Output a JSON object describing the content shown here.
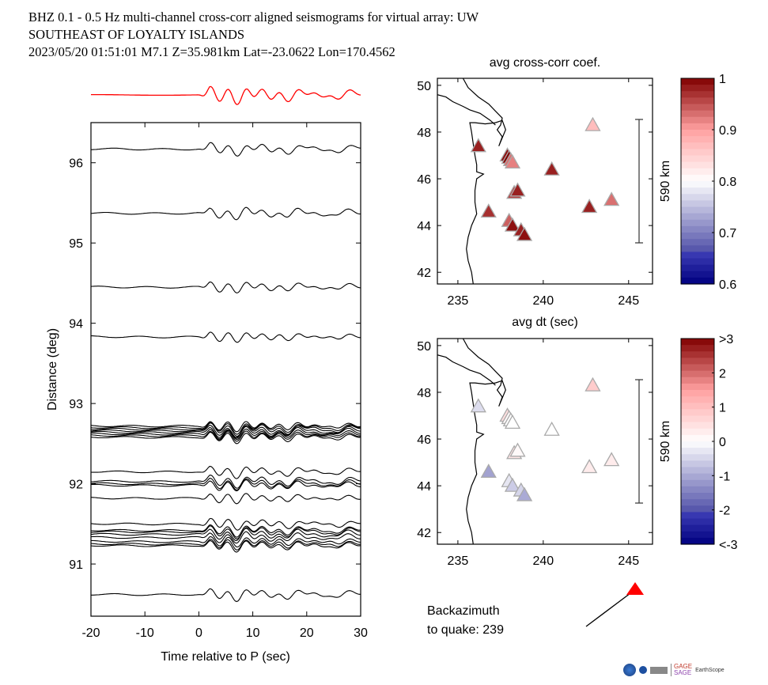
{
  "titles": {
    "line1": "BHZ  0.1 - 0.5 Hz  multi-channel cross-corr aligned seismograms for virtual array: UW",
    "line2": "SOUTHEAST OF LOYALTY ISLANDS",
    "line3": "2023/05/20  01:51:01  M7.1  Z=35.981km Lat=-23.0622 Lon=170.4562"
  },
  "backazimuth": {
    "line1": "Backazimuth",
    "line2": "to quake:  239",
    "value": 239,
    "marker_color": "#ff0000"
  },
  "logos": [
    "NSF",
    "NASA",
    "DOE",
    "GAGE",
    "SAGE",
    "EarthScope Consortium"
  ],
  "chart_data": [
    {
      "type": "line",
      "name": "seismogram-section",
      "title": "",
      "xlabel": "Time relative to P (sec)",
      "ylabel": "Distance (deg)",
      "xlim": [
        -20,
        30
      ],
      "ylim": [
        90.35,
        96.5
      ],
      "xticks": [
        -20,
        -10,
        0,
        10,
        20,
        30
      ],
      "yticks": [
        91,
        92,
        93,
        94,
        95,
        96
      ],
      "stack_color": "#ff0000",
      "trace_color": "#000000",
      "trace_offsets_deg": [
        96.17,
        95.37,
        94.45,
        93.83,
        92.72,
        92.7,
        92.68,
        92.66,
        92.64,
        92.62,
        92.6,
        92.58,
        92.15,
        92.03,
        92.0,
        91.98,
        91.82,
        91.5,
        91.42,
        91.4,
        91.37,
        91.33,
        91.28,
        91.25,
        91.23,
        90.62
      ]
    },
    {
      "type": "scatter",
      "name": "avg-cross-corr-map",
      "title": "avg cross-corr coef.",
      "xlabel": "avg dt (sec)",
      "ylabel": "",
      "xlim": [
        233.8,
        246.4
      ],
      "ylim": [
        41.5,
        50.3
      ],
      "xticks": [
        235,
        240,
        245
      ],
      "yticks": [
        42,
        44,
        46,
        48,
        50
      ],
      "scale_bar_label": "590 km",
      "colorbar": {
        "min": 0.6,
        "max": 1,
        "ticks": [
          "1",
          "0.9",
          "0.8",
          "0.7",
          "0.6"
        ]
      },
      "stations": [
        {
          "lon": 236.2,
          "lat": 47.4,
          "value": 0.98
        },
        {
          "lon": 237.9,
          "lat": 47.0,
          "value": 0.99
        },
        {
          "lon": 238.0,
          "lat": 46.9,
          "value": 1.0
        },
        {
          "lon": 238.1,
          "lat": 46.8,
          "value": 0.93
        },
        {
          "lon": 238.2,
          "lat": 46.7,
          "value": 0.92
        },
        {
          "lon": 240.5,
          "lat": 46.4,
          "value": 0.98
        },
        {
          "lon": 242.9,
          "lat": 48.3,
          "value": 0.87
        },
        {
          "lon": 238.3,
          "lat": 45.4,
          "value": 0.96
        },
        {
          "lon": 238.5,
          "lat": 45.5,
          "value": 0.98
        },
        {
          "lon": 236.8,
          "lat": 44.6,
          "value": 0.97
        },
        {
          "lon": 238.0,
          "lat": 44.2,
          "value": 0.94
        },
        {
          "lon": 238.2,
          "lat": 44.0,
          "value": 0.99
        },
        {
          "lon": 238.7,
          "lat": 43.8,
          "value": 0.98
        },
        {
          "lon": 238.9,
          "lat": 43.6,
          "value": 0.99
        },
        {
          "lon": 242.7,
          "lat": 44.8,
          "value": 0.98
        },
        {
          "lon": 244.0,
          "lat": 45.1,
          "value": 0.93
        }
      ]
    },
    {
      "type": "scatter",
      "name": "avg-dt-map",
      "title": "avg dt (sec)",
      "xlabel": "",
      "ylabel": "",
      "xlim": [
        233.8,
        246.4
      ],
      "ylim": [
        41.5,
        50.3
      ],
      "xticks": [
        235,
        240,
        245
      ],
      "yticks": [
        42,
        44,
        46,
        48,
        50
      ],
      "scale_bar_label": "590 km",
      "colorbar": {
        "min": -3,
        "max": 3,
        "ticks": [
          ">3",
          "2",
          "1",
          "0",
          "-1",
          "-2",
          "<-3"
        ]
      },
      "stations": [
        {
          "lon": 236.2,
          "lat": 47.4,
          "value": -0.4
        },
        {
          "lon": 237.9,
          "lat": 47.0,
          "value": 0.5
        },
        {
          "lon": 238.0,
          "lat": 46.9,
          "value": 0.1
        },
        {
          "lon": 238.1,
          "lat": 46.8,
          "value": 0.0
        },
        {
          "lon": 238.2,
          "lat": 46.7,
          "value": 0.0
        },
        {
          "lon": 240.5,
          "lat": 46.4,
          "value": 0.0
        },
        {
          "lon": 242.9,
          "lat": 48.3,
          "value": 0.8
        },
        {
          "lon": 238.3,
          "lat": 45.4,
          "value": 0.4
        },
        {
          "lon": 238.5,
          "lat": 45.5,
          "value": 0.1
        },
        {
          "lon": 236.8,
          "lat": 44.6,
          "value": -1.1
        },
        {
          "lon": 238.0,
          "lat": 44.2,
          "value": -0.3
        },
        {
          "lon": 238.2,
          "lat": 44.0,
          "value": -0.6
        },
        {
          "lon": 238.7,
          "lat": 43.8,
          "value": -0.5
        },
        {
          "lon": 238.9,
          "lat": 43.6,
          "value": -1.0
        },
        {
          "lon": 242.7,
          "lat": 44.8,
          "value": 0.3
        },
        {
          "lon": 244.0,
          "lat": 45.1,
          "value": 0.3
        }
      ]
    }
  ]
}
